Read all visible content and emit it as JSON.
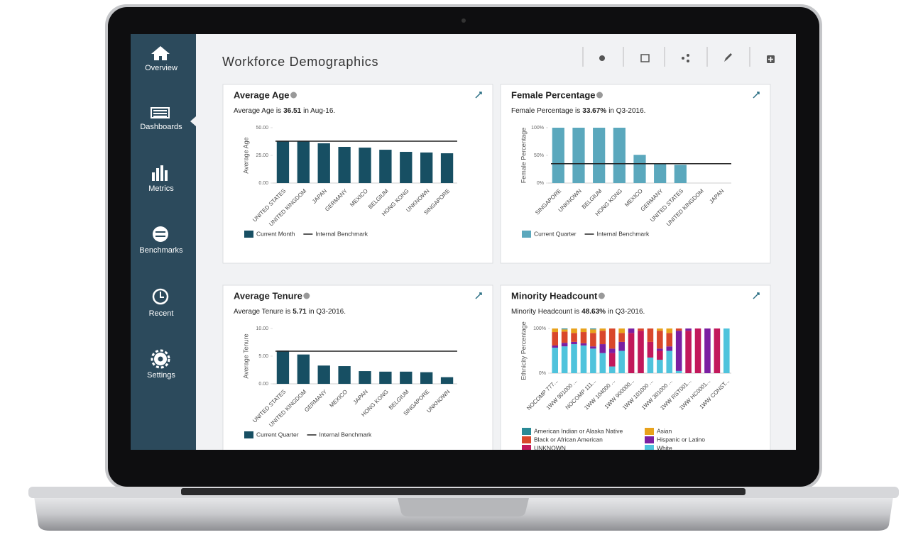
{
  "header": {
    "title": "Workforce Demographics"
  },
  "sidebar": {
    "items": [
      "Overview",
      "Dashboards",
      "Metrics",
      "Benchmarks",
      "Recent",
      "Settings"
    ]
  },
  "chart_data": [
    {
      "type": "bar",
      "title": "Average Age",
      "summary": {
        "prefix": "Average Age is",
        "value": "36.51",
        "suffix": "in Aug-16."
      },
      "ylabel": "Average Age",
      "categories": [
        "UNITED STATES",
        "UNITED KINGDOM",
        "JAPAN",
        "GERMANY",
        "MEXICO",
        "BELGIUM",
        "HONG KONG",
        "UNKNOWN",
        "SINGAPORE"
      ],
      "series": [
        {
          "name": "Current Month",
          "color": "#174f63",
          "values": [
            37.8,
            37.8,
            35.9,
            32.7,
            32,
            30.1,
            28.2,
            27.6,
            26.9
          ]
        }
      ],
      "benchmark": {
        "name": "Internal Benchmark",
        "color": "#222222",
        "value": 37.8
      },
      "ylim": [
        0,
        50
      ],
      "yticks": [
        {
          "value": 0,
          "label": "0.00"
        },
        {
          "value": 25,
          "label": "25.00"
        },
        {
          "value": 50,
          "label": "50.00"
        }
      ]
    },
    {
      "type": "bar",
      "title": "Female Percentage",
      "summary": {
        "prefix": "Female Percentage is",
        "value": "33.67%",
        "suffix": "in Q3-2016."
      },
      "ylabel": "Female Percentage",
      "categories": [
        "SINGAPORE",
        "UNKNOWN",
        "BELGIUM",
        "HONG KONG",
        "MEXICO",
        "GERMANY",
        "UNITED STATES",
        "UNITED KINGDOM",
        "JAPAN"
      ],
      "series": [
        {
          "name": "Current Quarter",
          "color": "#5ba8bd",
          "values": [
            100,
            100,
            100,
            100,
            51,
            35,
            33,
            0,
            0
          ]
        }
      ],
      "benchmark": {
        "name": "Internal Benchmark",
        "color": "#222222",
        "value": 35
      },
      "ylim": [
        0,
        100
      ],
      "yticks": [
        {
          "value": 0,
          "label": "0%"
        },
        {
          "value": 50,
          "label": "50%"
        },
        {
          "value": 100,
          "label": "100%"
        }
      ]
    },
    {
      "type": "bar",
      "title": "Average Tenure",
      "summary": {
        "prefix": "Average Tenure is",
        "value": "5.71",
        "suffix": "in Q3-2016."
      },
      "ylabel": "Average Tenure",
      "categories": [
        "UNITED STATES",
        "UNITED KINGDOM",
        "GERMANY",
        "MEXICO",
        "JAPAN",
        "HONG KONG",
        "BELGIUM",
        "SINGAPORE",
        "UNKNOWN"
      ],
      "series": [
        {
          "name": "Current Quarter",
          "color": "#174f63",
          "values": [
            6.0,
            5.3,
            3.3,
            3.2,
            2.3,
            2.2,
            2.2,
            2.1,
            1.2
          ]
        }
      ],
      "benchmark": {
        "name": "Internal Benchmark",
        "color": "#222222",
        "value": 5.9
      },
      "ylim": [
        0,
        10
      ],
      "yticks": [
        {
          "value": 0,
          "label": "0.00"
        },
        {
          "value": 5,
          "label": "5.00"
        },
        {
          "value": 10,
          "label": "10.00"
        }
      ]
    },
    {
      "type": "stacked_bar",
      "title": "Minority Headcount",
      "summary": {
        "prefix": "Minority Headcount is",
        "value": "48.63%",
        "suffix": "in Q3-2016."
      },
      "ylabel": "Ethnicity Percentage",
      "categories": [
        "NOCOMP 777...",
        null,
        "1WW 901000 ...",
        null,
        "NOCOMP 111...",
        null,
        "1WW 104000 ...",
        null,
        "1WW 900000...",
        null,
        "1WW 101000 ...",
        null,
        "1WW 301000 ...",
        null,
        "1WW RST001...",
        null,
        "1WW HC0001...",
        null,
        "1WW CONST..."
      ],
      "series": [
        {
          "name": "American Indian or Alaska Native",
          "color": "#2a8a96",
          "values": [
            0,
            2,
            0,
            0,
            2,
            0,
            0,
            0,
            0,
            0,
            0,
            0,
            0,
            0,
            0,
            0,
            0,
            0,
            0
          ]
        },
        {
          "name": "Asian",
          "color": "#e8a21c",
          "values": [
            8,
            5,
            10,
            8,
            8,
            5,
            0,
            10,
            0,
            0,
            0,
            5,
            10,
            0,
            0,
            0,
            0,
            0,
            0
          ]
        },
        {
          "name": "Black or African American",
          "color": "#d9472b",
          "values": [
            30,
            25,
            20,
            25,
            30,
            30,
            45,
            20,
            0,
            5,
            30,
            40,
            30,
            5,
            0,
            0,
            0,
            0,
            0
          ]
        },
        {
          "name": "Hispanic or Latino",
          "color": "#7b1fa2",
          "values": [
            5,
            8,
            5,
            5,
            5,
            20,
            10,
            20,
            10,
            0,
            0,
            5,
            10,
            90,
            5,
            0,
            100,
            0,
            0
          ]
        },
        {
          "name": "UNKNOWN",
          "color": "#c2185b",
          "values": [
            0,
            0,
            0,
            0,
            0,
            0,
            30,
            0,
            90,
            95,
            35,
            20,
            0,
            0,
            95,
            100,
            0,
            100,
            0
          ]
        },
        {
          "name": "White",
          "color": "#4fc3dc",
          "values": [
            57,
            60,
            65,
            62,
            55,
            45,
            15,
            50,
            0,
            0,
            35,
            30,
            50,
            5,
            0,
            0,
            0,
            0,
            100
          ]
        }
      ],
      "ylim": [
        0,
        100
      ],
      "yticks": [
        {
          "value": 0,
          "label": "0%"
        },
        {
          "value": 100,
          "label": "100%"
        }
      ]
    }
  ]
}
